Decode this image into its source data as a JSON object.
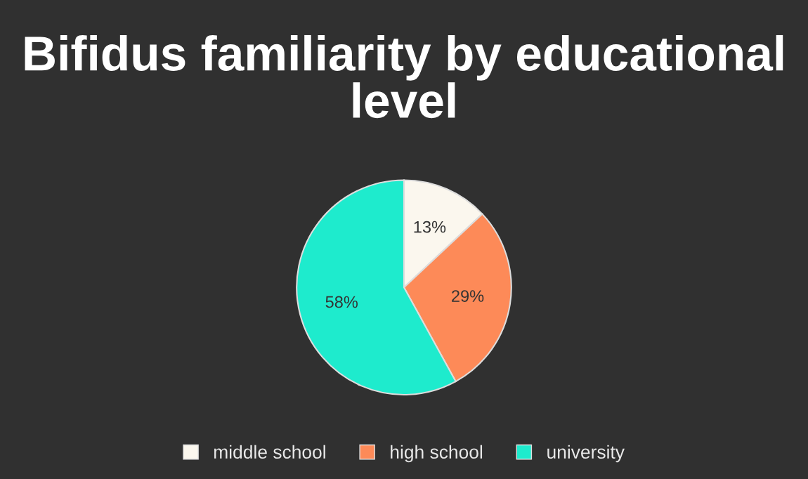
{
  "chart_data": {
    "type": "pie",
    "title": "Bifidus familiarity by educational level",
    "categories": [
      "middle school",
      "high school",
      "university"
    ],
    "values": [
      13,
      29,
      58
    ],
    "colors": [
      "#fbf7ee",
      "#fd8a58",
      "#1eebcd"
    ],
    "value_labels": [
      "13%",
      "29%",
      "58%"
    ],
    "legend": "bottom"
  }
}
